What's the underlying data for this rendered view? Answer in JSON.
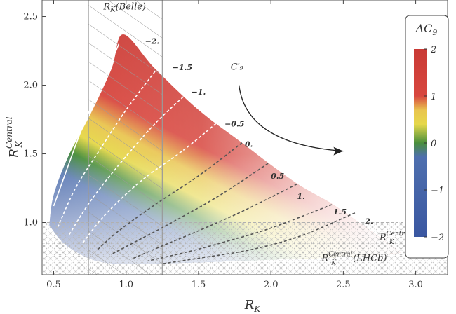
{
  "chart_data": {
    "type": "heatmap",
    "title": "",
    "xlabel": "R_K",
    "ylabel": "R_K^Central",
    "xlim": [
      0.42,
      3.22
    ],
    "ylim": [
      0.62,
      2.62
    ],
    "x_ticks": [
      {
        "value": 0.5,
        "label": "0.5"
      },
      {
        "value": 1.0,
        "label": "1.0"
      },
      {
        "value": 1.5,
        "label": "1.5"
      },
      {
        "value": 2.0,
        "label": "2.0"
      },
      {
        "value": 2.5,
        "label": "2.5"
      },
      {
        "value": 3.0,
        "label": "3.0"
      }
    ],
    "y_ticks": [
      {
        "value": 1.0,
        "label": "1.0"
      },
      {
        "value": 1.5,
        "label": "1.5"
      },
      {
        "value": 2.0,
        "label": "2.0"
      },
      {
        "value": 2.5,
        "label": "2.5"
      }
    ],
    "colorbar": {
      "title": "ΔC₉",
      "range": [
        -2,
        2
      ],
      "ticks": [
        {
          "value": 2,
          "label": "2"
        },
        {
          "value": 1,
          "label": "1"
        },
        {
          "value": 0,
          "label": "0"
        },
        {
          "value": -1,
          "label": "−1"
        },
        {
          "value": -2,
          "label": "−2"
        }
      ],
      "stops": [
        {
          "value": -2,
          "color": "#3a57a1"
        },
        {
          "value": -0.3,
          "color": "#4e6fae"
        },
        {
          "value": 0,
          "color": "#4a8f3c"
        },
        {
          "value": 0.4,
          "color": "#e6d84a"
        },
        {
          "value": 0.7,
          "color": "#e9c44e"
        },
        {
          "value": 1.0,
          "color": "#d8473f"
        },
        {
          "value": 2,
          "color": "#c93a35"
        }
      ]
    },
    "region_upper_envelope": [
      [
        0.47,
        0.98
      ],
      [
        0.5,
        1.2
      ],
      [
        0.6,
        1.48
      ],
      [
        0.75,
        1.78
      ],
      [
        0.9,
        2.12
      ],
      [
        0.98,
        2.37
      ],
      [
        1.2,
        2.12
      ],
      [
        1.5,
        1.82
      ],
      [
        1.8,
        1.58
      ],
      [
        2.0,
        1.42
      ],
      [
        2.2,
        1.27
      ],
      [
        2.4,
        1.15
      ],
      [
        2.5,
        1.08
      ]
    ],
    "region_lower_envelope": [
      [
        0.47,
        0.98
      ],
      [
        0.55,
        0.87
      ],
      [
        0.65,
        0.79
      ],
      [
        0.8,
        0.72
      ],
      [
        1.0,
        0.7
      ],
      [
        1.5,
        0.71
      ],
      [
        2.0,
        0.73
      ],
      [
        2.5,
        0.75
      ],
      [
        2.9,
        0.78
      ]
    ],
    "contours": [
      {
        "label": "−2.",
        "value": -2,
        "dashed": false,
        "color": "#ffffff",
        "label_at": [
          1.13,
          2.3
        ],
        "points": [
          [
            0.95,
            2.3
          ],
          [
            0.85,
            2.05
          ],
          [
            0.72,
            1.75
          ],
          [
            0.63,
            1.5
          ],
          [
            0.5,
            1.12
          ]
        ]
      },
      {
        "label": "−1.5",
        "value": -1.5,
        "dashed": true,
        "color": "#ffffff",
        "label_at": [
          1.32,
          2.11
        ],
        "points": [
          [
            1.2,
            2.1
          ],
          [
            1.0,
            1.82
          ],
          [
            0.8,
            1.5
          ],
          [
            0.65,
            1.25
          ],
          [
            0.53,
            0.97
          ]
        ]
      },
      {
        "label": "−1.",
        "value": -1.0,
        "dashed": true,
        "color": "#ffffff",
        "label_at": [
          1.45,
          1.93
        ],
        "points": [
          [
            1.42,
            1.94
          ],
          [
            1.2,
            1.72
          ],
          [
            0.95,
            1.42
          ],
          [
            0.75,
            1.15
          ],
          [
            0.6,
            0.9
          ]
        ]
      },
      {
        "label": "−0.5",
        "value": -0.5,
        "dashed": true,
        "color": "#ffffff",
        "label_at": [
          1.68,
          1.7
        ],
        "points": [
          [
            1.62,
            1.72
          ],
          [
            1.4,
            1.53
          ],
          [
            1.1,
            1.3
          ],
          [
            0.85,
            1.05
          ],
          [
            0.7,
            0.85
          ]
        ]
      },
      {
        "label": "0.",
        "value": 0.0,
        "dashed": true,
        "color": "#555555",
        "label_at": [
          1.82,
          1.55
        ],
        "points": [
          [
            1.8,
            1.58
          ],
          [
            1.5,
            1.34
          ],
          [
            1.2,
            1.13
          ],
          [
            0.95,
            0.94
          ],
          [
            0.8,
            0.8
          ]
        ]
      },
      {
        "label": "0.5",
        "value": 0.5,
        "dashed": true,
        "color": "#555555",
        "label_at": [
          2.0,
          1.32
        ],
        "points": [
          [
            1.98,
            1.43
          ],
          [
            1.65,
            1.2
          ],
          [
            1.35,
            1.02
          ],
          [
            1.1,
            0.88
          ],
          [
            0.9,
            0.77
          ]
        ]
      },
      {
        "label": "1.",
        "value": 1.0,
        "dashed": true,
        "color": "#555555",
        "label_at": [
          2.18,
          1.17
        ],
        "points": [
          [
            2.18,
            1.28
          ],
          [
            1.8,
            1.08
          ],
          [
            1.5,
            0.94
          ],
          [
            1.25,
            0.83
          ],
          [
            1.05,
            0.74
          ]
        ]
      },
      {
        "label": "1.5",
        "value": 1.5,
        "dashed": true,
        "color": "#555555",
        "label_at": [
          2.43,
          1.06
        ],
        "points": [
          [
            2.42,
            1.13
          ],
          [
            2.0,
            0.96
          ],
          [
            1.65,
            0.85
          ],
          [
            1.4,
            0.78
          ],
          [
            1.15,
            0.72
          ]
        ]
      },
      {
        "label": "2.",
        "value": 2.0,
        "dashed": true,
        "color": "#555555",
        "label_at": [
          2.65,
          0.99
        ],
        "points": [
          [
            2.58,
            1.07
          ],
          [
            2.2,
            0.9
          ],
          [
            1.85,
            0.8
          ],
          [
            1.5,
            0.74
          ],
          [
            1.25,
            0.7
          ]
        ]
      }
    ],
    "belle_band": {
      "label": "R_K(Belle)",
      "x_range": [
        0.74,
        1.25
      ]
    },
    "central_bands": [
      {
        "label": "R_K^Central (Belle)",
        "y_range": [
          0.75,
          1.0
        ]
      },
      {
        "label": "R_K^Central (LHCb)",
        "y_range": [
          0.62,
          0.85
        ]
      }
    ],
    "arrow": {
      "label": "C′₉",
      "from": [
        1.78,
        2.0
      ],
      "to": [
        2.5,
        1.52
      ]
    }
  }
}
